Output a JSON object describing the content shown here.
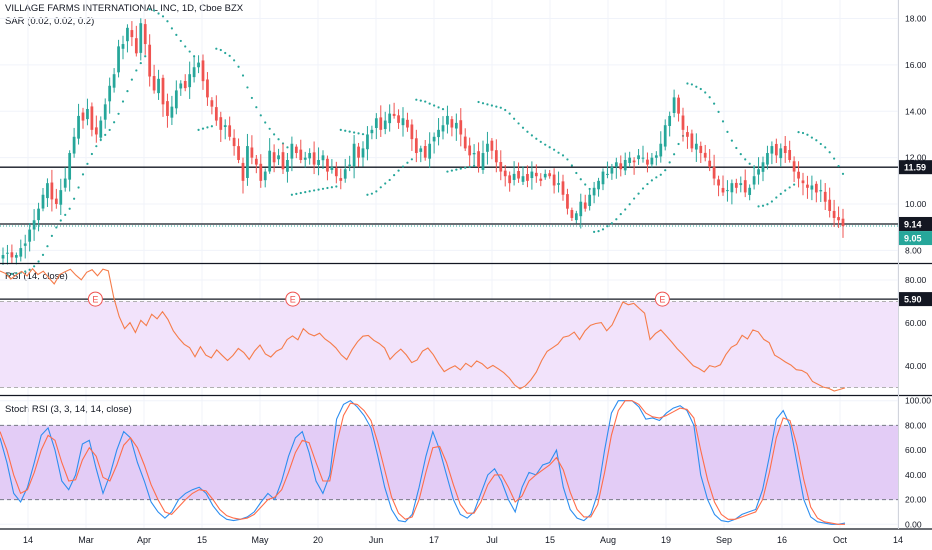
{
  "header": {
    "symbol_line": "VILLAGE FARMS INTERNATIONAL INC, 1D, Cboe BZX",
    "indicator_line": "SAR (0.02, 0.02, 0.2)"
  },
  "colors": {
    "up": "#26a69a",
    "down": "#ef5350",
    "sar": "#26a69a",
    "rsi_line": "#f57c4a",
    "rsi_band": "#f2e3fb",
    "stoch_k": "#2d8ef0",
    "stoch_d": "#ff6d4a",
    "stoch_band": "#e3ccf6",
    "grid": "#f0f3fa",
    "earnings": "#ef5350"
  },
  "chart_data": [
    {
      "type": "candlestick",
      "title": "VILLAGE FARMS INTERNATIONAL INC, 1D, Cboe BZX",
      "overlay": "SAR (0.02, 0.02, 0.2)",
      "ylim": [
        7.5,
        18.8
      ],
      "y_scale": "linear",
      "y_ticks": [
        8.0,
        10.0,
        12.0,
        14.0,
        16.0,
        18.0
      ],
      "y_tick_labels": [
        "8.00",
        "10.00",
        "12.00",
        "14.00",
        "16.00",
        "18.00"
      ],
      "x_tick_labels": [
        "14",
        "Mar",
        "Apr",
        "15",
        "May",
        "20",
        "Jun",
        "17",
        "Jul",
        "15",
        "Aug",
        "19",
        "Sep",
        "16",
        "Oct",
        "14"
      ],
      "horizontal_lines": [
        {
          "value": 11.59,
          "label": "11.59"
        },
        {
          "value": 9.14,
          "label": "9.14"
        },
        {
          "value": 5.9,
          "label": "5.90"
        }
      ],
      "last_price": {
        "value": 9.05,
        "label": "9.05"
      },
      "earnings_marker": "E",
      "earnings_marks_count": 3,
      "close_values": [
        7.8,
        7.9,
        7.7,
        7.8,
        8.1,
        8.3,
        8.9,
        9.3,
        9.8,
        10.4,
        10.9,
        10.2,
        10.0,
        10.6,
        11.1,
        12.2,
        12.9,
        13.8,
        13.6,
        14.1,
        13.2,
        13.0,
        13.6,
        14.3,
        15.1,
        15.6,
        16.8,
        16.9,
        17.6,
        17.2,
        16.5,
        17.8,
        16.9,
        15.5,
        14.9,
        15.4,
        14.3,
        13.8,
        14.2,
        14.9,
        15.2,
        15.0,
        15.6,
        15.9,
        16.1,
        15.3,
        14.6,
        14.2,
        13.6,
        13.2,
        13.4,
        12.9,
        12.5,
        11.9,
        11.0,
        12.5,
        12.0,
        11.7,
        11.0,
        11.4,
        12.3,
        11.8,
        12.1,
        11.5,
        11.9,
        12.6,
        12.2,
        11.9,
        12.0,
        12.2,
        11.7,
        11.9,
        12.1,
        11.4,
        11.6,
        11.2,
        11.0,
        11.5,
        11.7,
        12.6,
        12.0,
        12.4,
        13.0,
        13.2,
        13.7,
        13.2,
        13.6,
        13.9,
        13.8,
        13.5,
        13.7,
        13.3,
        12.8,
        12.2,
        12.4,
        12.0,
        12.6,
        12.9,
        13.2,
        13.4,
        13.8,
        13.3,
        13.5,
        13.0,
        12.4,
        12.1,
        12.2,
        11.6,
        12.2,
        12.6,
        12.3,
        11.8,
        11.4,
        11.2,
        10.9,
        11.3,
        11.1,
        11.2,
        11.0,
        11.4,
        11.2,
        11.0,
        11.3,
        11.2,
        10.8,
        10.9,
        10.4,
        9.8,
        9.4,
        9.6,
        10.1,
        9.8,
        10.4,
        10.7,
        11.0,
        11.4,
        11.3,
        11.6,
        11.8,
        11.5,
        11.9,
        12.0,
        11.8,
        12.1,
        12.0,
        11.7,
        12.0,
        12.1,
        12.6,
        13.4,
        13.8,
        14.6,
        13.9,
        13.2,
        12.9,
        12.4,
        12.6,
        12.2,
        12.0,
        11.6,
        11.1,
        10.8,
        10.5,
        10.6,
        10.9,
        10.7,
        10.9,
        10.5,
        10.7,
        11.2,
        11.5,
        11.8,
        12.2,
        12.5,
        12.1,
        12.4,
        12.2,
        11.9,
        11.4,
        11.1,
        10.9,
        10.7,
        10.8,
        10.5,
        10.6,
        10.1,
        9.7,
        9.4,
        9.3,
        9.05
      ]
    },
    {
      "type": "line",
      "title": "RSI (14, close)",
      "ylim": [
        27,
        87
      ],
      "y_ticks": [
        40,
        60,
        80
      ],
      "y_tick_labels": [
        "40.00",
        "60.00",
        "80.00"
      ],
      "bands": [
        30,
        70
      ],
      "series": [
        {
          "values": [
            84.2,
            83.1,
            80.5,
            82.4,
            84.0,
            81.9,
            85.3,
            82.6,
            84.1,
            81.0,
            78.2,
            82.5,
            83.9,
            85.0,
            82.3,
            80.1,
            83.6,
            84.8,
            82.0,
            85.1,
            84.3,
            71.8,
            63.0,
            57.4,
            60.2,
            55.6,
            61.3,
            58.8,
            64.1,
            62.0,
            65.3,
            61.7,
            56.4,
            52.9,
            50.1,
            48.6,
            44.3,
            49.0,
            45.1,
            43.8,
            47.5,
            45.0,
            42.6,
            44.9,
            48.2,
            46.3,
            43.1,
            47.0,
            49.8,
            45.6,
            44.2,
            46.9,
            48.1,
            52.3,
            54.0,
            52.2,
            57.4,
            55.1,
            54.0,
            55.3,
            52.6,
            50.8,
            48.5,
            45.2,
            43.0,
            47.6,
            51.3,
            53.9,
            54.2,
            52.0,
            50.5,
            48.4,
            43.1,
            45.8,
            47.9,
            45.2,
            41.6,
            42.8,
            46.9,
            48.4,
            45.3,
            41.0,
            37.4,
            38.9,
            40.1,
            38.2,
            41.3,
            39.6,
            42.4,
            41.1,
            38.8,
            40.3,
            38.7,
            36.9,
            34.5,
            31.2,
            29.4,
            30.8,
            33.5,
            37.2,
            42.6,
            46.8,
            48.5,
            50.2,
            53.4,
            54.0,
            55.8,
            52.3,
            56.4,
            58.9,
            59.8,
            60.2,
            56.4,
            59.1,
            64.5,
            69.8,
            68.5,
            69.2,
            66.8,
            64.6,
            52.3,
            55.1,
            56.8,
            54.0,
            51.2,
            48.1,
            45.6,
            42.8,
            40.1,
            38.9,
            37.3,
            40.2,
            39.5,
            40.6,
            45.3,
            48.7,
            50.1,
            54.3,
            52.6,
            56.8,
            55.9,
            52.4,
            50.9,
            45.1,
            43.6,
            41.9,
            40.5,
            38.3,
            38.0,
            36.6,
            32.8,
            31.5,
            30.2,
            29.6,
            28.4,
            29.1,
            29.9
          ]
        }
      ]
    },
    {
      "type": "line",
      "title": "Stoch RSI (3, 3, 14, 14, close)",
      "ylim": [
        -3,
        103
      ],
      "y_ticks": [
        0,
        20,
        40,
        60,
        80,
        100
      ],
      "y_tick_labels": [
        "0.00",
        "20.00",
        "40.00",
        "60.00",
        "80.00",
        "100.00"
      ],
      "bands": [
        20,
        80
      ],
      "series": [
        {
          "values": [
            70,
            50,
            25,
            18,
            30,
            50,
            72,
            78,
            60,
            35,
            28,
            40,
            65,
            68,
            45,
            25,
            40,
            60,
            75,
            70,
            50,
            35,
            18,
            10,
            5,
            10,
            20,
            25,
            28,
            30,
            25,
            15,
            8,
            4,
            3,
            4,
            6,
            10,
            18,
            25,
            20,
            35,
            55,
            70,
            75,
            58,
            35,
            25,
            40,
            85,
            97,
            100,
            95,
            88,
            78,
            55,
            30,
            12,
            3,
            2,
            8,
            30,
            55,
            75,
            60,
            40,
            20,
            8,
            5,
            10,
            25,
            40,
            45,
            35,
            20,
            10,
            30,
            42,
            40,
            48,
            50,
            60,
            30,
            12,
            5,
            3,
            8,
            25,
            60,
            90,
            100,
            100,
            100,
            95,
            85,
            86,
            84,
            90,
            94,
            96,
            92,
            80,
            40,
            20,
            8,
            3,
            2,
            4,
            8,
            10,
            12,
            28,
            55,
            85,
            92,
            80,
            50,
            20,
            6,
            2,
            1,
            0,
            0,
            1
          ]
        },
        {
          "values": [
            75,
            60,
            40,
            25,
            28,
            42,
            60,
            72,
            68,
            50,
            35,
            36,
            52,
            62,
            55,
            38,
            35,
            48,
            64,
            70,
            62,
            48,
            32,
            20,
            10,
            8,
            14,
            20,
            25,
            28,
            27,
            20,
            12,
            7,
            5,
            4,
            5,
            8,
            14,
            20,
            22,
            28,
            42,
            58,
            68,
            66,
            50,
            35,
            35,
            65,
            88,
            98,
            97,
            92,
            84,
            66,
            44,
            22,
            9,
            4,
            6,
            20,
            42,
            62,
            63,
            50,
            32,
            16,
            9,
            9,
            18,
            32,
            40,
            40,
            30,
            18,
            23,
            35,
            40,
            44,
            48,
            54,
            44,
            26,
            12,
            6,
            6,
            16,
            42,
            72,
            92,
            100,
            100,
            97,
            90,
            87,
            86,
            88,
            91,
            94,
            93,
            86,
            60,
            36,
            18,
            8,
            4,
            4,
            6,
            8,
            10,
            20,
            42,
            70,
            86,
            84,
            64,
            36,
            14,
            5,
            2,
            1,
            0,
            0
          ]
        }
      ]
    }
  ]
}
